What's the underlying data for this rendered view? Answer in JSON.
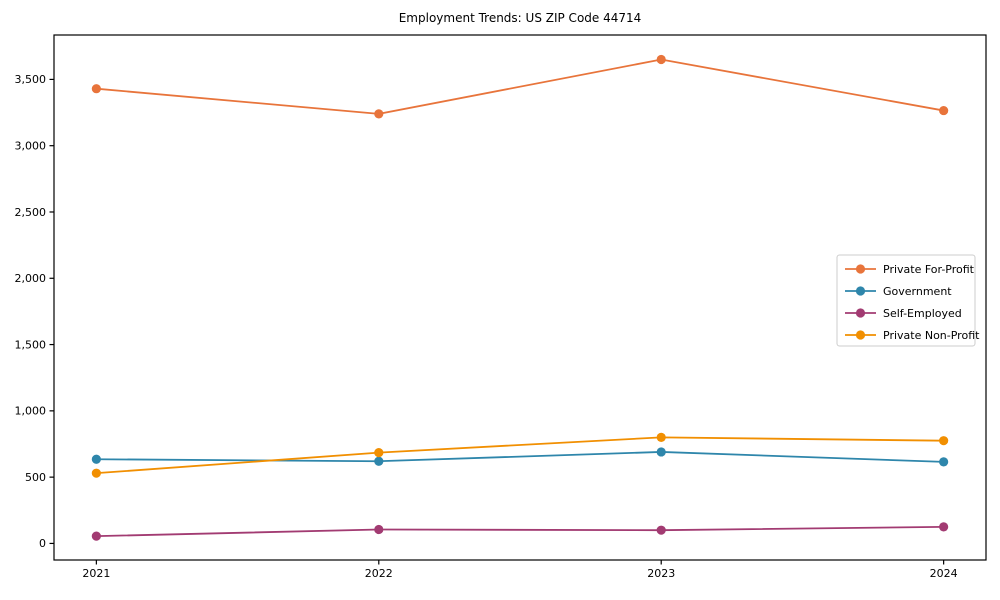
{
  "chart_data": {
    "type": "line",
    "title": "Employment Trends: US ZIP Code 44714",
    "xlabel": "",
    "ylabel": "",
    "categories": [
      2021,
      2022,
      2023,
      2024
    ],
    "series": [
      {
        "name": "Private For-Profit",
        "color": "#E8743B",
        "values": [
          3430,
          3240,
          3650,
          3265
        ]
      },
      {
        "name": "Government",
        "color": "#2E86AB",
        "values": [
          635,
          620,
          690,
          615
        ]
      },
      {
        "name": "Self-Employed",
        "color": "#A23B72",
        "values": [
          55,
          105,
          100,
          125
        ]
      },
      {
        "name": "Private Non-Profit",
        "color": "#F18F01",
        "values": [
          530,
          685,
          800,
          775
        ]
      }
    ],
    "xlim": [
      2020.85,
      2024.15
    ],
    "ylim": [
      -125,
      3835
    ],
    "yticks": [
      0,
      500,
      1000,
      1500,
      2000,
      2500,
      3000,
      3500
    ],
    "ytick_labels": [
      "0",
      "500",
      "1,000",
      "1,500",
      "2,000",
      "2,500",
      "3,000",
      "3,500"
    ],
    "xtick_labels": [
      "2021",
      "2022",
      "2023",
      "2024"
    ],
    "grid": false,
    "legend_position": "center-right",
    "marker": "circle",
    "frame_color": "#000000",
    "legend_border_color": "#cccccc",
    "background_color": "#ffffff"
  }
}
